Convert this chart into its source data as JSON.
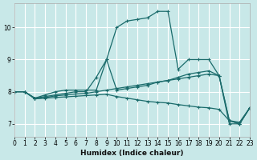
{
  "xlabel": "Humidex (Indice chaleur)",
  "bg_color": "#c8e8e8",
  "grid_color": "#ffffff",
  "line_color": "#1a6b6b",
  "xlim": [
    0,
    23
  ],
  "ylim": [
    6.6,
    10.75
  ],
  "yticks": [
    7,
    8,
    9,
    10
  ],
  "xticks": [
    0,
    1,
    2,
    3,
    4,
    5,
    6,
    7,
    8,
    9,
    10,
    11,
    12,
    13,
    14,
    15,
    16,
    17,
    18,
    19,
    20,
    21,
    22,
    23
  ],
  "line1": {
    "x": [
      0,
      1,
      2,
      3,
      4,
      5,
      6,
      7,
      8,
      9,
      10,
      11,
      12,
      13,
      14,
      15,
      16,
      17,
      18,
      19,
      20,
      21,
      22,
      23
    ],
    "y": [
      8.0,
      8.0,
      7.8,
      7.9,
      8.0,
      8.05,
      8.05,
      8.05,
      8.05,
      9.0,
      10.0,
      10.2,
      10.25,
      10.3,
      10.5,
      10.5,
      8.7,
      9.0,
      9.0,
      9.0,
      8.5,
      7.0,
      7.0,
      7.5
    ]
  },
  "line2": {
    "x": [
      0,
      1,
      2,
      3,
      4,
      5,
      6,
      7,
      8,
      9,
      10,
      11,
      12,
      13,
      14,
      15,
      16,
      17,
      18,
      19,
      20,
      21,
      22,
      23
    ],
    "y": [
      8.0,
      8.0,
      7.8,
      7.85,
      7.9,
      7.95,
      8.0,
      8.0,
      8.45,
      9.0,
      8.05,
      8.1,
      8.15,
      8.2,
      8.3,
      8.35,
      8.45,
      8.55,
      8.6,
      8.65,
      8.5,
      7.1,
      7.05,
      7.5
    ]
  },
  "line3": {
    "x": [
      0,
      1,
      2,
      3,
      4,
      5,
      6,
      7,
      8,
      9,
      10,
      11,
      12,
      13,
      14,
      15,
      16,
      17,
      18,
      19,
      20,
      21,
      22,
      23
    ],
    "y": [
      8.0,
      8.0,
      7.78,
      7.82,
      7.87,
      7.9,
      7.93,
      7.95,
      8.0,
      8.05,
      8.1,
      8.15,
      8.2,
      8.25,
      8.3,
      8.35,
      8.4,
      8.45,
      8.5,
      8.55,
      8.5,
      7.1,
      7.0,
      7.5
    ]
  },
  "line4": {
    "x": [
      0,
      1,
      2,
      3,
      4,
      5,
      6,
      7,
      8,
      9,
      10,
      11,
      12,
      13,
      14,
      15,
      16,
      17,
      18,
      19,
      20,
      21,
      22,
      23
    ],
    "y": [
      8.0,
      8.0,
      7.78,
      7.8,
      7.82,
      7.84,
      7.86,
      7.88,
      7.9,
      7.92,
      7.85,
      7.8,
      7.75,
      7.7,
      7.67,
      7.65,
      7.6,
      7.56,
      7.52,
      7.5,
      7.45,
      7.1,
      7.0,
      7.5
    ]
  }
}
